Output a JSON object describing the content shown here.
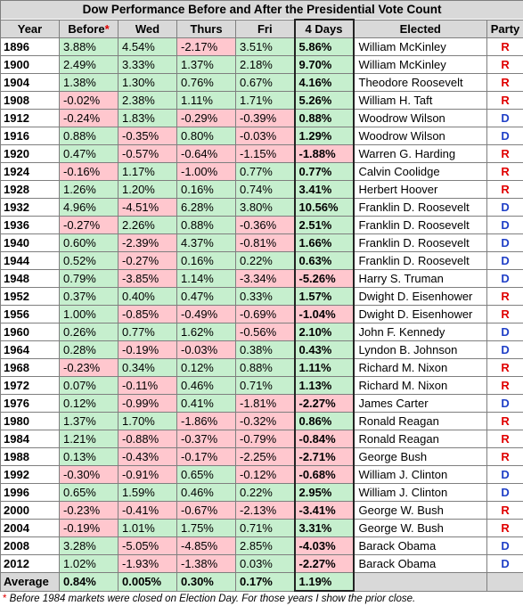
{
  "chart_data": {
    "type": "table",
    "title": "Dow Performance Before and After the Presidential Vote Count",
    "headers": {
      "year": "Year",
      "before": "Before",
      "before_marker": "*",
      "wed": "Wed",
      "thurs": "Thurs",
      "fri": "Fri",
      "four_days": "4 Days",
      "elected": "Elected",
      "party": "Party"
    },
    "rows": [
      {
        "year": "1896",
        "before": "3.88%",
        "wed": "4.54%",
        "thurs": "-2.17%",
        "fri": "3.51%",
        "four_days": "5.86%",
        "elected": "William McKinley",
        "party": "R"
      },
      {
        "year": "1900",
        "before": "2.49%",
        "wed": "3.33%",
        "thurs": "1.37%",
        "fri": "2.18%",
        "four_days": "9.70%",
        "elected": "William McKinley",
        "party": "R"
      },
      {
        "year": "1904",
        "before": "1.38%",
        "wed": "1.30%",
        "thurs": "0.76%",
        "fri": "0.67%",
        "four_days": "4.16%",
        "elected": "Theodore Roosevelt",
        "party": "R"
      },
      {
        "year": "1908",
        "before": "-0.02%",
        "wed": "2.38%",
        "thurs": "1.11%",
        "fri": "1.71%",
        "four_days": "5.26%",
        "elected": "William H. Taft",
        "party": "R"
      },
      {
        "year": "1912",
        "before": "-0.24%",
        "wed": "1.83%",
        "thurs": "-0.29%",
        "fri": "-0.39%",
        "four_days": "0.88%",
        "elected": "Woodrow Wilson",
        "party": "D"
      },
      {
        "year": "1916",
        "before": "0.88%",
        "wed": "-0.35%",
        "thurs": "0.80%",
        "fri": "-0.03%",
        "four_days": "1.29%",
        "elected": "Woodrow Wilson",
        "party": "D"
      },
      {
        "year": "1920",
        "before": "0.47%",
        "wed": "-0.57%",
        "thurs": "-0.64%",
        "fri": "-1.15%",
        "four_days": "-1.88%",
        "elected": "Warren G. Harding",
        "party": "R"
      },
      {
        "year": "1924",
        "before": "-0.16%",
        "wed": "1.17%",
        "thurs": "-1.00%",
        "fri": "0.77%",
        "four_days": "0.77%",
        "elected": "Calvin Coolidge",
        "party": "R"
      },
      {
        "year": "1928",
        "before": "1.26%",
        "wed": "1.20%",
        "thurs": "0.16%",
        "fri": "0.74%",
        "four_days": "3.41%",
        "elected": "Herbert Hoover",
        "party": "R"
      },
      {
        "year": "1932",
        "before": "4.96%",
        "wed": "-4.51%",
        "thurs": "6.28%",
        "fri": "3.80%",
        "four_days": "10.56%",
        "elected": "Franklin D. Roosevelt",
        "party": "D"
      },
      {
        "year": "1936",
        "before": "-0.27%",
        "wed": "2.26%",
        "thurs": "0.88%",
        "fri": "-0.36%",
        "four_days": "2.51%",
        "elected": "Franklin D. Roosevelt",
        "party": "D"
      },
      {
        "year": "1940",
        "before": "0.60%",
        "wed": "-2.39%",
        "thurs": "4.37%",
        "fri": "-0.81%",
        "four_days": "1.66%",
        "elected": "Franklin D. Roosevelt",
        "party": "D"
      },
      {
        "year": "1944",
        "before": "0.52%",
        "wed": "-0.27%",
        "thurs": "0.16%",
        "fri": "0.22%",
        "four_days": "0.63%",
        "elected": "Franklin D. Roosevelt",
        "party": "D"
      },
      {
        "year": "1948",
        "before": "0.79%",
        "wed": "-3.85%",
        "thurs": "1.14%",
        "fri": "-3.34%",
        "four_days": "-5.26%",
        "elected": "Harry S. Truman",
        "party": "D"
      },
      {
        "year": "1952",
        "before": "0.37%",
        "wed": "0.40%",
        "thurs": "0.47%",
        "fri": "0.33%",
        "four_days": "1.57%",
        "elected": "Dwight D. Eisenhower",
        "party": "R"
      },
      {
        "year": "1956",
        "before": "1.00%",
        "wed": "-0.85%",
        "thurs": "-0.49%",
        "fri": "-0.69%",
        "four_days": "-1.04%",
        "elected": "Dwight D. Eisenhower",
        "party": "R"
      },
      {
        "year": "1960",
        "before": "0.26%",
        "wed": "0.77%",
        "thurs": "1.62%",
        "fri": "-0.56%",
        "four_days": "2.10%",
        "elected": "John F. Kennedy",
        "party": "D"
      },
      {
        "year": "1964",
        "before": "0.28%",
        "wed": "-0.19%",
        "thurs": "-0.03%",
        "fri": "0.38%",
        "four_days": "0.43%",
        "elected": "Lyndon B. Johnson",
        "party": "D"
      },
      {
        "year": "1968",
        "before": "-0.23%",
        "wed": "0.34%",
        "thurs": "0.12%",
        "fri": "0.88%",
        "four_days": "1.11%",
        "elected": "Richard M. Nixon",
        "party": "R"
      },
      {
        "year": "1972",
        "before": "0.07%",
        "wed": "-0.11%",
        "thurs": "0.46%",
        "fri": "0.71%",
        "four_days": "1.13%",
        "elected": "Richard M. Nixon",
        "party": "R"
      },
      {
        "year": "1976",
        "before": "0.12%",
        "wed": "-0.99%",
        "thurs": "0.41%",
        "fri": "-1.81%",
        "four_days": "-2.27%",
        "elected": "James Carter",
        "party": "D"
      },
      {
        "year": "1980",
        "before": "1.37%",
        "wed": "1.70%",
        "thurs": "-1.86%",
        "fri": "-0.32%",
        "four_days": "0.86%",
        "elected": "Ronald Reagan",
        "party": "R"
      },
      {
        "year": "1984",
        "before": "1.21%",
        "wed": "-0.88%",
        "thurs": "-0.37%",
        "fri": "-0.79%",
        "four_days": "-0.84%",
        "elected": "Ronald Reagan",
        "party": "R"
      },
      {
        "year": "1988",
        "before": "0.13%",
        "wed": "-0.43%",
        "thurs": "-0.17%",
        "fri": "-2.25%",
        "four_days": "-2.71%",
        "elected": "George Bush",
        "party": "R"
      },
      {
        "year": "1992",
        "before": "-0.30%",
        "wed": "-0.91%",
        "thurs": "0.65%",
        "fri": "-0.12%",
        "four_days": "-0.68%",
        "elected": "William J. Clinton",
        "party": "D"
      },
      {
        "year": "1996",
        "before": "0.65%",
        "wed": "1.59%",
        "thurs": "0.46%",
        "fri": "0.22%",
        "four_days": "2.95%",
        "elected": "William J. Clinton",
        "party": "D"
      },
      {
        "year": "2000",
        "before": "-0.23%",
        "wed": "-0.41%",
        "thurs": "-0.67%",
        "fri": "-2.13%",
        "four_days": "-3.41%",
        "elected": "George W. Bush",
        "party": "R"
      },
      {
        "year": "2004",
        "before": "-0.19%",
        "wed": "1.01%",
        "thurs": "1.75%",
        "fri": "0.71%",
        "four_days": "3.31%",
        "elected": "George W. Bush",
        "party": "R"
      },
      {
        "year": "2008",
        "before": "3.28%",
        "wed": "-5.05%",
        "thurs": "-4.85%",
        "fri": "2.85%",
        "four_days": "-4.03%",
        "elected": "Barack Obama",
        "party": "D"
      },
      {
        "year": "2012",
        "before": "1.02%",
        "wed": "-1.93%",
        "thurs": "-1.38%",
        "fri": "0.03%",
        "four_days": "-2.27%",
        "elected": "Barack Obama",
        "party": "D"
      }
    ],
    "average": {
      "label": "Average",
      "before": "0.84%",
      "wed": "0.005%",
      "thurs": "0.30%",
      "fri": "0.17%",
      "four_days": "1.19%"
    },
    "footnote_marker": "*",
    "footnote": " Before 1984 markets were closed on Election Day. For those years I show the prior close."
  },
  "colors": {
    "positive": "#c6efce",
    "negative": "#ffc7ce",
    "header": "#d9d9d9",
    "republican": "#e00000",
    "democrat": "#1f3fc7"
  }
}
